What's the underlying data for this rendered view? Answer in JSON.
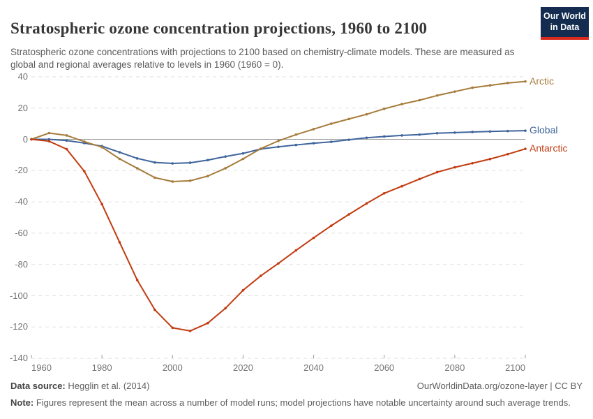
{
  "header": {
    "title": "Stratospheric ozone concentration projections, 1960 to 2100",
    "subtitle": "Stratospheric ozone concentrations with projections to 2100 based on chemistry-climate models. These are measured as global and regional averages relative to levels in 1960 (1960 = 0).",
    "logo": {
      "line1": "Our World",
      "line2": "in Data"
    }
  },
  "footer": {
    "source_label": "Data source:",
    "source_text": " Hegglin et al. (2014)",
    "citation": "OurWorldinData.org/ozone-layer | CC BY",
    "note_label": "Note:",
    "note_text": " Figures represent the mean across a number of model runs; model projections have notable uncertainty around such average trends."
  },
  "chart_data": {
    "type": "line",
    "title": "Stratospheric ozone concentration projections, 1960 to 2100",
    "xlabel": "",
    "ylabel": "",
    "xlim": [
      1960,
      2100
    ],
    "ylim": [
      -140,
      40
    ],
    "xticks": [
      1960,
      1980,
      2000,
      2020,
      2040,
      2060,
      2080,
      2100
    ],
    "yticks": [
      40,
      20,
      0,
      -20,
      -40,
      -60,
      -80,
      -100,
      -120,
      -140
    ],
    "grid": "horizontal-dashed",
    "zero_line": true,
    "legend_position": "right-of-line-end",
    "marker": "dot",
    "x": [
      1960,
      1965,
      1970,
      1975,
      1980,
      1985,
      1990,
      1995,
      2000,
      2005,
      2010,
      2015,
      2020,
      2025,
      2030,
      2035,
      2040,
      2045,
      2050,
      2055,
      2060,
      2065,
      2070,
      2075,
      2080,
      2085,
      2090,
      2095,
      2100
    ],
    "series": [
      {
        "name": "Arctic",
        "color": "#A57C3B",
        "values": [
          0,
          4,
          2.5,
          -1.5,
          -5,
          -12.5,
          -18.5,
          -24.5,
          -27,
          -26.5,
          -23.5,
          -18.5,
          -12.5,
          -6,
          -1,
          3,
          6.5,
          10,
          13,
          16,
          19.5,
          22.5,
          25,
          28,
          30.5,
          33,
          34.5,
          36,
          37
        ]
      },
      {
        "name": "Global",
        "color": "#3E649C",
        "values": [
          0,
          0,
          -0.8,
          -2.4,
          -4.4,
          -8.3,
          -12.2,
          -14.8,
          -15.4,
          -15,
          -13.3,
          -11,
          -9,
          -6.2,
          -4.8,
          -3.6,
          -2.5,
          -1.6,
          -0.3,
          1,
          1.8,
          2.5,
          3,
          3.9,
          4.3,
          4.7,
          5,
          5.3,
          5.5
        ]
      },
      {
        "name": "Antarctic",
        "color": "#C23B10",
        "values": [
          0,
          -1.2,
          -6.3,
          -20.4,
          -41.5,
          -65.8,
          -90,
          -109,
          -120.5,
          -122.5,
          -117.5,
          -108,
          -96.5,
          -87.3,
          -79.3,
          -71,
          -63,
          -55.2,
          -48,
          -41,
          -34.5,
          -30,
          -25.4,
          -21,
          -17.9,
          -15.3,
          -12.6,
          -9.5,
          -6.1
        ]
      }
    ]
  },
  "colors": {
    "grid": "#e2e2e2",
    "zero_line": "#9a9a9a",
    "tick": "#9a9a9a",
    "axis_text": "#747474"
  }
}
